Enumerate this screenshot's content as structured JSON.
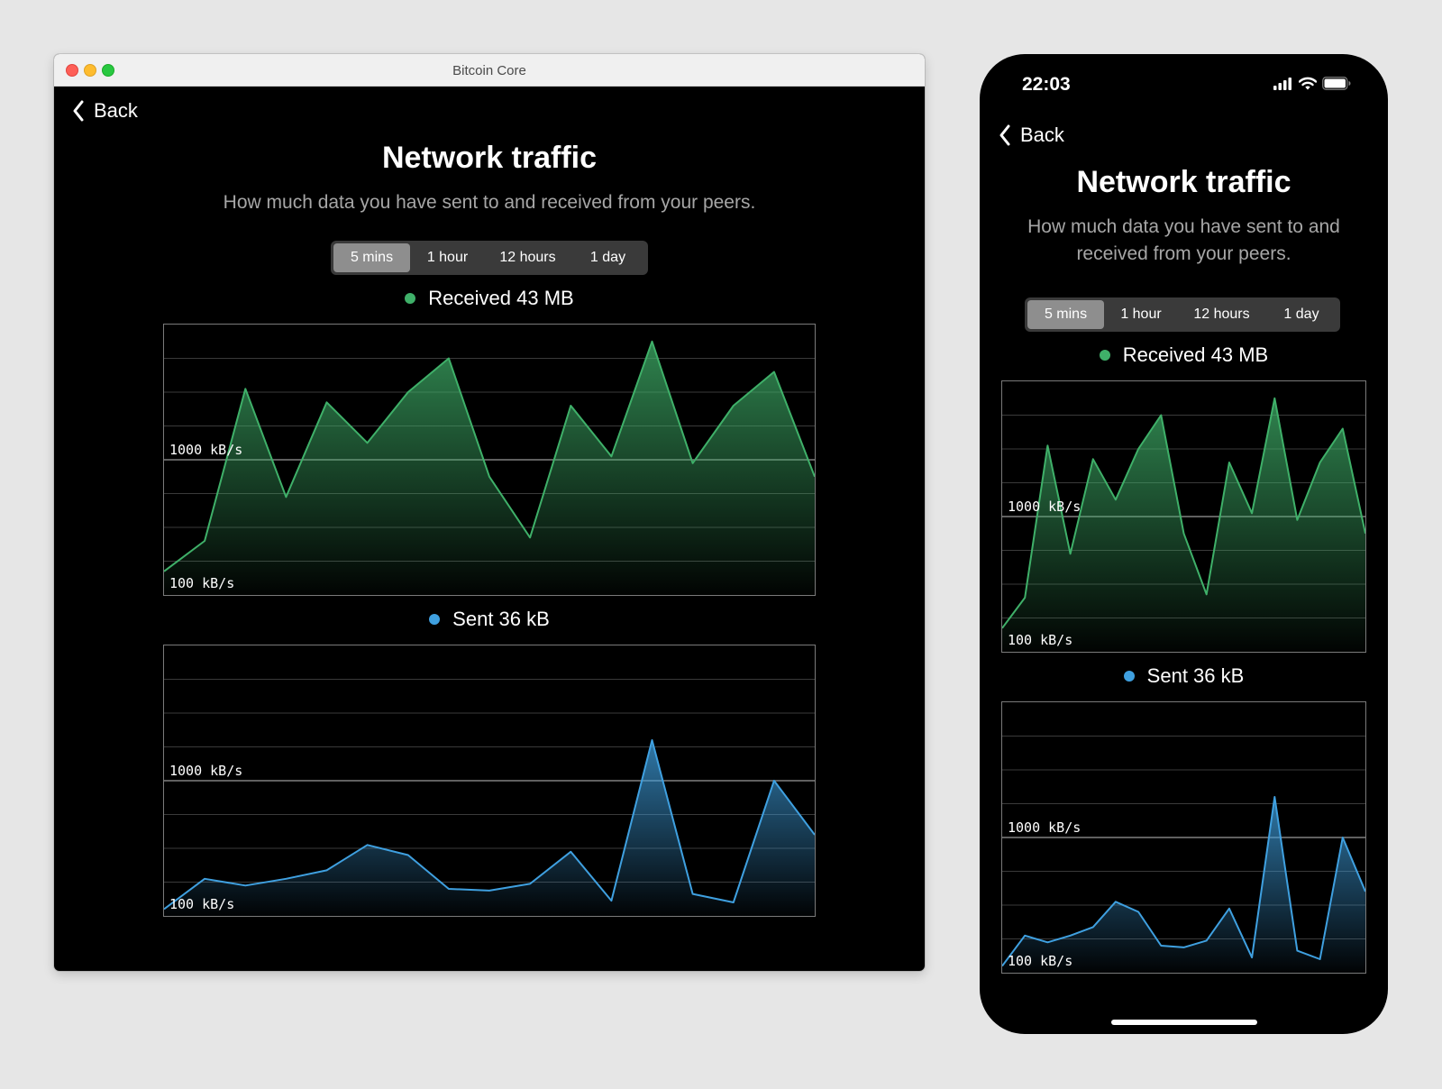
{
  "desktop": {
    "window_title": "Bitcoin Core",
    "back_label": "Back",
    "title": "Network traffic",
    "subtitle": "How much data you have sent to and received from your peers.",
    "tabs": [
      "5 mins",
      "1 hour",
      "12 hours",
      "1 day"
    ],
    "active_tab": 0,
    "received_label": "Received 43 MB",
    "sent_label": "Sent 36 kB"
  },
  "phone": {
    "time": "22:03",
    "back_label": "Back",
    "title": "Network traffic",
    "subtitle_line1": "How much data you have sent to and",
    "subtitle_line2": "received from your peers.",
    "tabs": [
      "5 mins",
      "1 hour",
      "12 hours",
      "1 day"
    ],
    "active_tab": 0,
    "received_label": "Received 43 MB",
    "sent_label": "Sent 36 kB"
  },
  "colors": {
    "received": "#3fb069",
    "sent": "#3fa0e0",
    "grid": "#3a3a3a",
    "ref_line": "#9a9a9a"
  },
  "icons": {
    "back": "chevron-left-icon",
    "signal": "signal-bars-icon",
    "wifi": "wifi-icon",
    "battery": "battery-icon"
  },
  "chart_data": [
    {
      "type": "area",
      "ylabel_ticks": [
        "1000 kB/s",
        "100 kB/s"
      ],
      "ylim": [
        0,
        8
      ],
      "grid": true,
      "series": [
        {
          "name": "Received 43 MB",
          "values": [
            0.7,
            1.6,
            6.1,
            2.9,
            5.7,
            4.5,
            6.0,
            7.0,
            3.5,
            1.7,
            5.6,
            4.1,
            7.5,
            3.9,
            5.6,
            6.6,
            3.5
          ]
        }
      ]
    },
    {
      "type": "area",
      "ylabel_ticks": [
        "1000 kB/s",
        "100 kB/s"
      ],
      "ylim": [
        0,
        8
      ],
      "grid": true,
      "series": [
        {
          "name": "Sent 36 kB",
          "values": [
            0.2,
            1.1,
            0.9,
            1.1,
            1.35,
            2.1,
            1.8,
            0.8,
            0.75,
            0.95,
            1.9,
            0.45,
            5.2,
            0.65,
            0.4,
            4.0,
            2.4
          ]
        }
      ]
    }
  ]
}
